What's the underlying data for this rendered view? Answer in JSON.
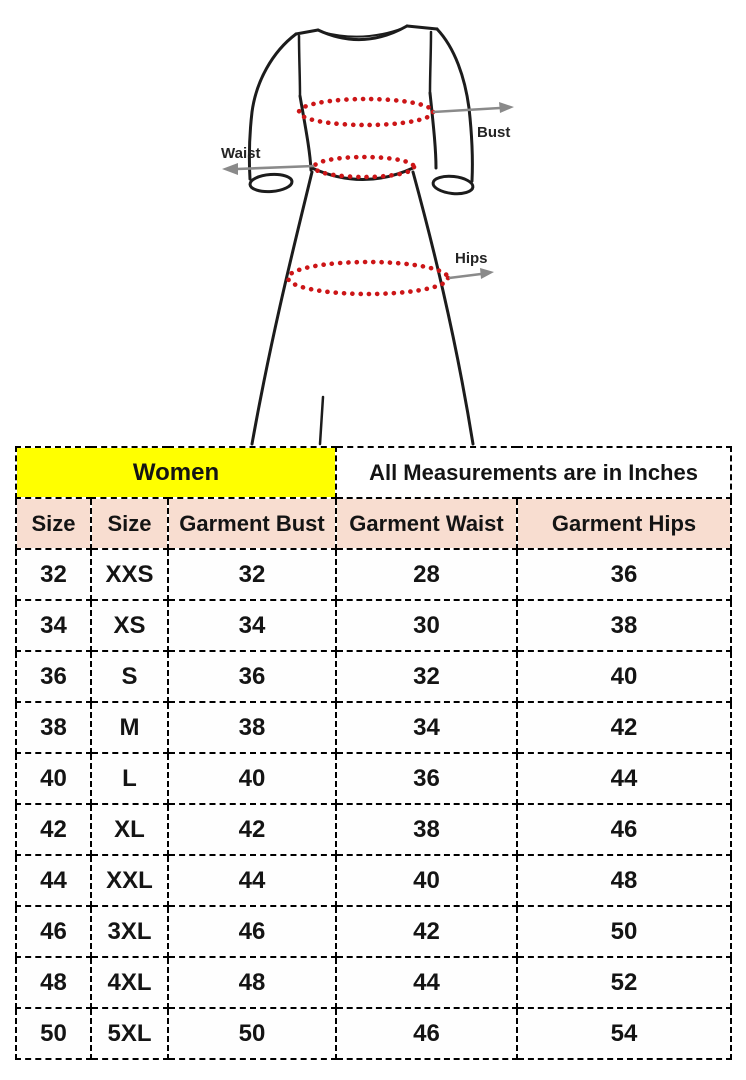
{
  "figure": {
    "bust_label": "Bust",
    "waist_label": "Waist",
    "hips_label": "Hips",
    "colors": {
      "outline": "#1c1c1c",
      "measure_dots": "#cc1517",
      "arrow": "#8a8a8a"
    }
  },
  "table": {
    "group_header": {
      "women": "Women",
      "units": "All Measurements are in Inches"
    },
    "columns": [
      "Size",
      "Size",
      "Garment Bust",
      "Garment Waist",
      "Garment Hips"
    ],
    "rows": [
      [
        "32",
        "XXS",
        "32",
        "28",
        "36"
      ],
      [
        "34",
        "XS",
        "34",
        "30",
        "38"
      ],
      [
        "36",
        "S",
        "36",
        "32",
        "40"
      ],
      [
        "38",
        "M",
        "38",
        "34",
        "42"
      ],
      [
        "40",
        "L",
        "40",
        "36",
        "44"
      ],
      [
        "42",
        "XL",
        "42",
        "38",
        "46"
      ],
      [
        "44",
        "XXL",
        "44",
        "40",
        "48"
      ],
      [
        "46",
        "3XL",
        "46",
        "42",
        "50"
      ],
      [
        "48",
        "4XL",
        "48",
        "44",
        "52"
      ],
      [
        "50",
        "5XL",
        "50",
        "46",
        "54"
      ]
    ],
    "colors": {
      "women_bg": "#ffff00",
      "header_bg": "#f8ddd0",
      "border": "#000000"
    }
  }
}
